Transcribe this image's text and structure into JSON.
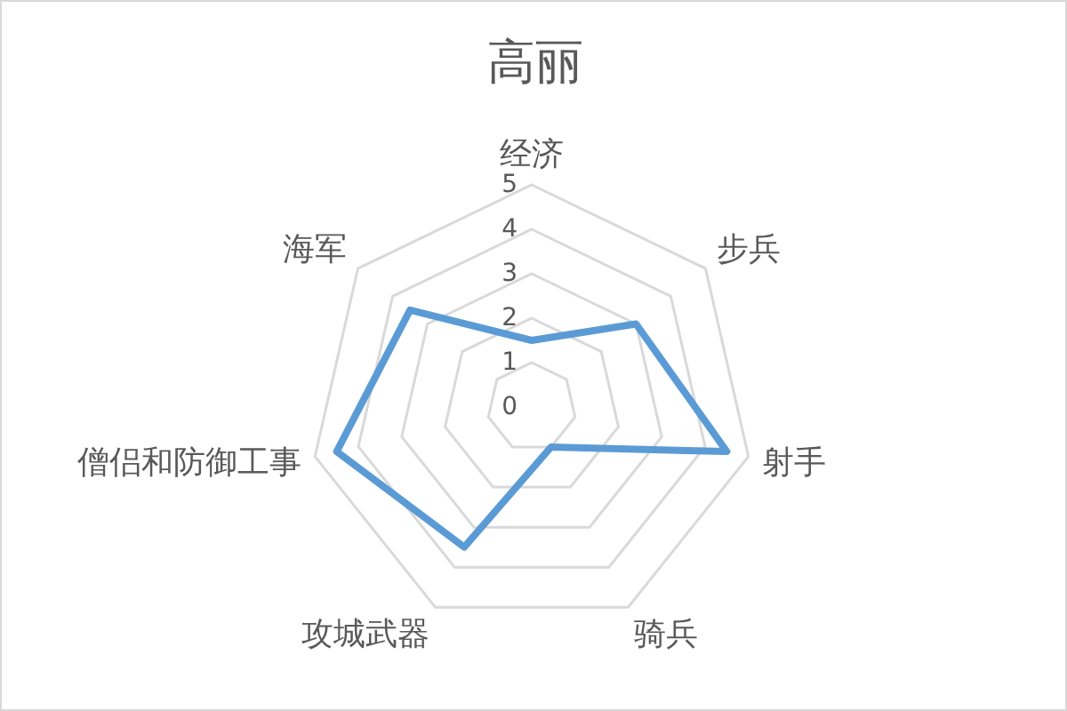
{
  "chart_data": {
    "type": "radar",
    "title": "高丽",
    "categories": [
      "经济",
      "步兵",
      "射手",
      "骑兵",
      "攻城武器",
      "僧侣和防御工事",
      "海军"
    ],
    "series": [
      {
        "color": "#5b9bd5",
        "values": [
          1.5,
          3,
          4.5,
          1,
          3.5,
          4.5,
          3.5
        ]
      }
    ],
    "ylim": [
      0,
      5
    ],
    "yticks": [
      0,
      1,
      2,
      3,
      4,
      5
    ],
    "grid": true
  }
}
